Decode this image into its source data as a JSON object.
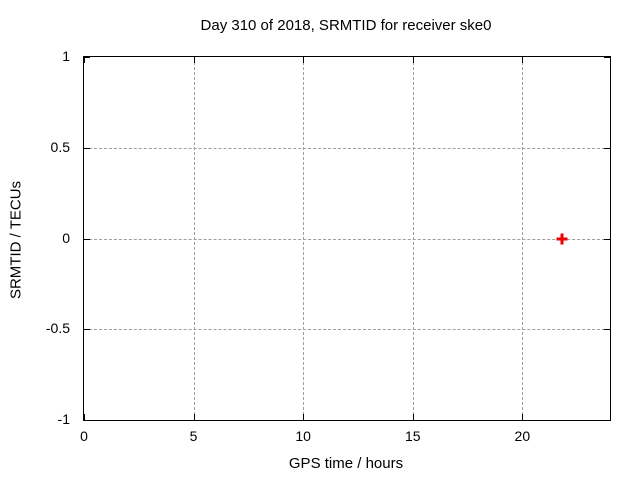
{
  "chart_data": {
    "type": "scatter",
    "title": "Day 310 of 2018, SRMTID for receiver ske0",
    "xlabel": "GPS time / hours",
    "ylabel": "SRMTID / TECUs",
    "xlim": [
      0,
      24
    ],
    "ylim": [
      -1,
      1
    ],
    "xticks": [
      0,
      5,
      10,
      15,
      20
    ],
    "xtick_labels": [
      "0",
      "5",
      "10",
      "15",
      "20"
    ],
    "yticks": [
      -1,
      -0.5,
      0,
      0.5,
      1
    ],
    "ytick_labels": [
      "-1",
      "-0.5",
      "0",
      "0.5",
      "1"
    ],
    "grid": true,
    "legend": false,
    "series": [
      {
        "name": "SRMTID",
        "marker": "plus",
        "color": "#ee0000",
        "points": [
          {
            "x": 21.8,
            "y": 0
          }
        ]
      }
    ],
    "colors": {
      "background": "#ffffff",
      "border": "#000000",
      "grid": "#9e9e9e",
      "text": "#000000"
    }
  }
}
